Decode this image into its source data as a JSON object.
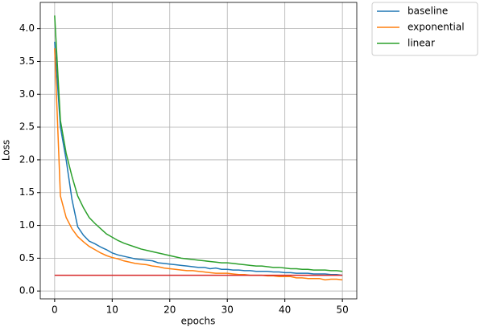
{
  "chart_data": {
    "type": "line",
    "x": [
      0,
      1,
      2,
      3,
      4,
      5,
      6,
      7,
      8,
      9,
      10,
      11,
      12,
      13,
      14,
      15,
      16,
      17,
      18,
      19,
      20,
      21,
      22,
      23,
      24,
      25,
      26,
      27,
      28,
      29,
      30,
      31,
      32,
      33,
      34,
      35,
      36,
      37,
      38,
      39,
      40,
      41,
      42,
      43,
      44,
      45,
      46,
      47,
      48,
      49,
      50
    ],
    "series": [
      {
        "name": "baseline",
        "color": "#1f77b4",
        "values": [
          3.8,
          2.5,
          2.0,
          1.4,
          0.98,
          0.85,
          0.76,
          0.72,
          0.67,
          0.63,
          0.58,
          0.55,
          0.53,
          0.51,
          0.49,
          0.48,
          0.47,
          0.46,
          0.43,
          0.42,
          0.41,
          0.4,
          0.39,
          0.38,
          0.37,
          0.36,
          0.36,
          0.34,
          0.35,
          0.33,
          0.33,
          0.32,
          0.32,
          0.31,
          0.31,
          0.3,
          0.3,
          0.3,
          0.29,
          0.29,
          0.28,
          0.28,
          0.27,
          0.27,
          0.27,
          0.26,
          0.26,
          0.26,
          0.25,
          0.25,
          0.24
        ]
      },
      {
        "name": "exponential",
        "color": "#ff7f0e",
        "values": [
          3.7,
          1.45,
          1.12,
          0.95,
          0.83,
          0.75,
          0.68,
          0.63,
          0.58,
          0.54,
          0.51,
          0.49,
          0.46,
          0.44,
          0.42,
          0.41,
          0.4,
          0.38,
          0.37,
          0.35,
          0.34,
          0.33,
          0.32,
          0.31,
          0.31,
          0.3,
          0.29,
          0.28,
          0.27,
          0.27,
          0.27,
          0.26,
          0.25,
          0.25,
          0.24,
          0.24,
          0.24,
          0.23,
          0.23,
          0.22,
          0.22,
          0.22,
          0.2,
          0.2,
          0.19,
          0.19,
          0.19,
          0.17,
          0.18,
          0.18,
          0.17
        ]
      },
      {
        "name": "linear",
        "color": "#2ca02c",
        "values": [
          4.2,
          2.6,
          2.1,
          1.75,
          1.45,
          1.27,
          1.12,
          1.03,
          0.95,
          0.87,
          0.82,
          0.77,
          0.73,
          0.7,
          0.67,
          0.64,
          0.62,
          0.6,
          0.58,
          0.56,
          0.54,
          0.52,
          0.5,
          0.49,
          0.48,
          0.47,
          0.46,
          0.45,
          0.44,
          0.43,
          0.43,
          0.42,
          0.41,
          0.4,
          0.39,
          0.38,
          0.38,
          0.37,
          0.36,
          0.36,
          0.35,
          0.34,
          0.34,
          0.33,
          0.33,
          0.32,
          0.32,
          0.32,
          0.31,
          0.31,
          0.3
        ]
      }
    ],
    "reference_line": {
      "y": 0.24,
      "x": [
        0,
        50
      ],
      "color": "#d62728"
    },
    "x_label": "epochs",
    "y_label": "Loss",
    "xlim": [
      -2.5,
      52.5
    ],
    "xticks": [
      0,
      10,
      20,
      30,
      40,
      50
    ],
    "ylim": [
      -0.12,
      4.4
    ],
    "yticks": [
      {
        "value": 0,
        "label": "0.0"
      },
      0.5,
      {
        "value": 1,
        "label": "1.0"
      },
      1.5,
      {
        "value": 2,
        "label": "2.0"
      },
      2.5,
      {
        "value": 3,
        "label": "3.0"
      },
      3.5,
      {
        "value": 4,
        "label": "4.0"
      }
    ],
    "grid": true,
    "legend": "outside-upper-right"
  }
}
